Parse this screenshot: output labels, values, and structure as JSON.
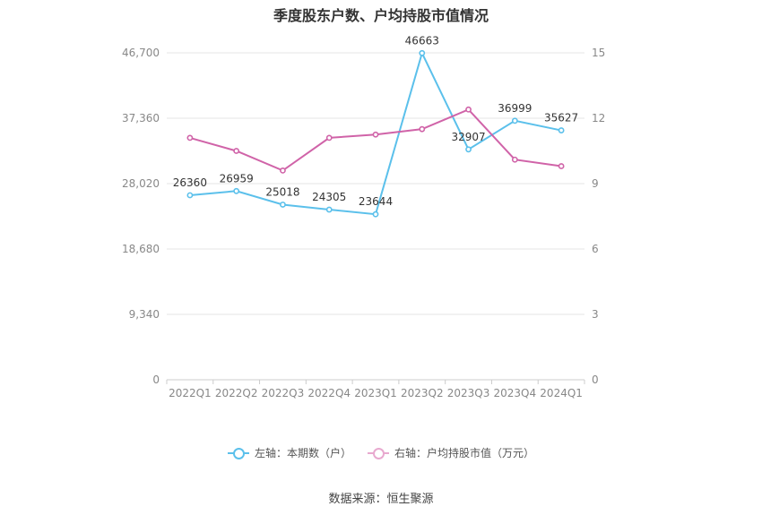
{
  "chart_data": {
    "type": "line",
    "title": "季度股东户数、户均持股市值情况",
    "categories": [
      "2022Q1",
      "2022Q2",
      "2022Q3",
      "2022Q4",
      "2023Q1",
      "2023Q2",
      "2023Q3",
      "2023Q4",
      "2024Q1"
    ],
    "left_axis": {
      "ticks": [
        "0",
        "9,340",
        "18,680",
        "28,020",
        "37,360",
        "46,700"
      ],
      "ylim": [
        0,
        46700
      ]
    },
    "right_axis": {
      "ticks": [
        "0",
        "3",
        "6",
        "9",
        "12",
        "15"
      ],
      "ylim": [
        0,
        15
      ]
    },
    "series": [
      {
        "name": "左轴：本期数（户）",
        "axis": "left",
        "color": "#5bc0eb",
        "values": [
          26360,
          26959,
          25018,
          24305,
          23644,
          46663,
          32907,
          36999,
          35627
        ],
        "labels": [
          "26360",
          "26959",
          "25018",
          "24305",
          "23644",
          "46663",
          "32907",
          "36999",
          "35627"
        ]
      },
      {
        "name": "右轴：户均持股市值（万元）",
        "axis": "right",
        "color": "#d063a8",
        "values": [
          11.1,
          10.5,
          9.6,
          11.1,
          11.25,
          11.5,
          12.4,
          10.1,
          9.8
        ]
      }
    ],
    "grid": true,
    "legend_position": "bottom-center"
  },
  "legend": {
    "left_label": "左轴：本期数（户）",
    "right_label": "右轴：户均持股市值（万元）"
  },
  "source": "数据来源：恒生聚源",
  "colors": {
    "left_series": "#5bc0eb",
    "right_series": "#d063a8",
    "legend_right_faded": "#e8a9cf"
  }
}
